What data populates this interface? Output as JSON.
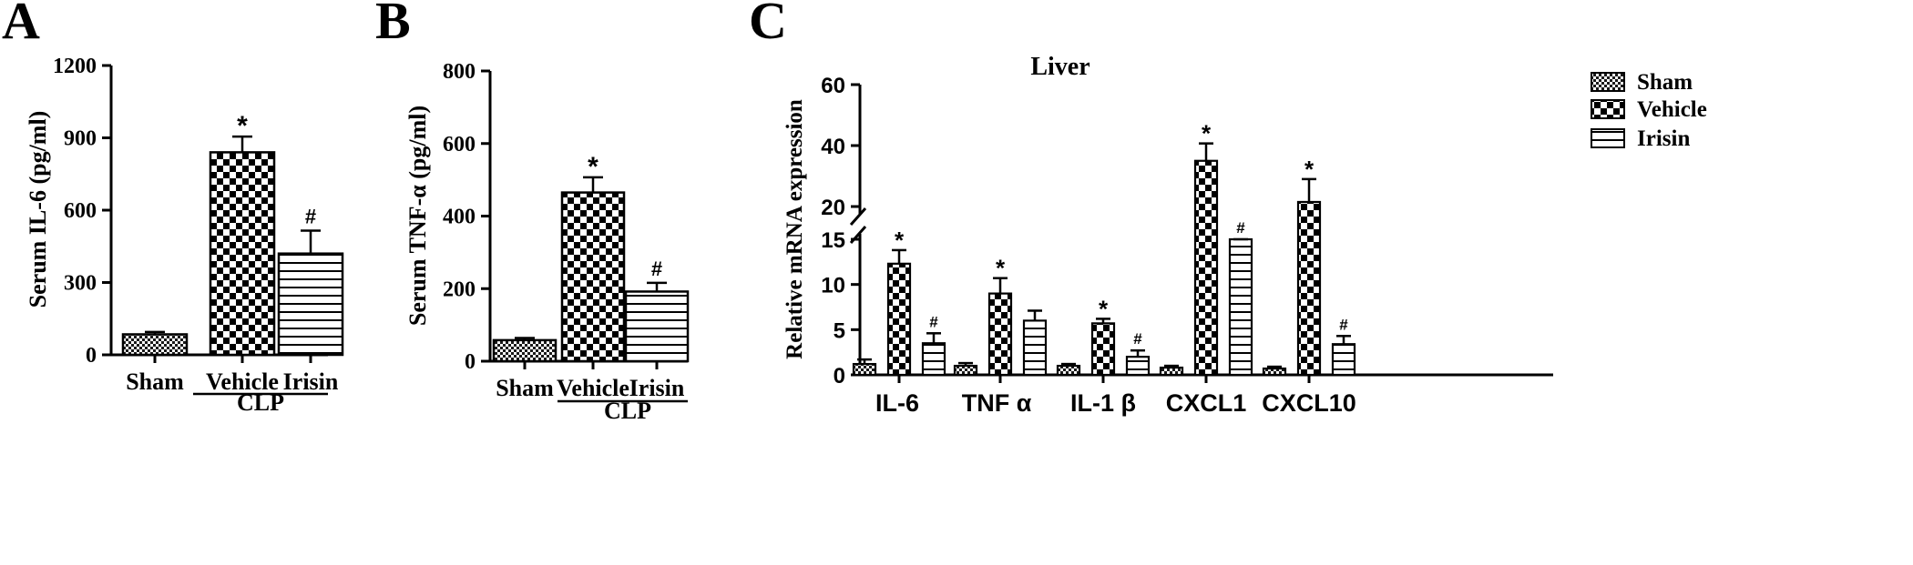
{
  "panels": {
    "a": {
      "letter": "A"
    },
    "b": {
      "letter": "B"
    },
    "c": {
      "letter": "C"
    }
  },
  "chart_data": [
    {
      "panel": "A",
      "type": "bar",
      "categories": [
        "Sham",
        "Vehicle",
        "Irisin"
      ],
      "values": [
        85,
        840,
        420
      ],
      "errors": [
        10,
        65,
        95
      ],
      "markers": [
        "",
        "*",
        "#"
      ],
      "patterns": [
        "fine",
        "checker",
        "hlines"
      ],
      "ylabel": "Serum IL-6 (pg/ml)",
      "ylim": [
        0,
        1200
      ],
      "yticks": [
        0,
        300,
        600,
        900,
        1200
      ],
      "group_label": "CLP",
      "grid": false
    },
    {
      "panel": "B",
      "type": "bar",
      "categories": [
        "Sham",
        "Vehicle",
        "Irisin"
      ],
      "values": [
        58,
        465,
        192
      ],
      "errors": [
        6,
        42,
        24
      ],
      "markers": [
        "",
        "*",
        "#"
      ],
      "patterns": [
        "fine",
        "checker",
        "hlines"
      ],
      "ylabel": "Serum TNF-α (pg/ml)",
      "ylim": [
        0,
        800
      ],
      "yticks": [
        0,
        200,
        400,
        600,
        800
      ],
      "group_label": "CLP",
      "grid": false
    },
    {
      "panel": "C",
      "type": "bar",
      "title": "Liver",
      "categories": [
        "IL-6",
        "TNF α",
        "IL-1 β",
        "CXCL1",
        "CXCL10"
      ],
      "series": [
        {
          "name": "Sham",
          "pattern": "fine",
          "values": [
            1.2,
            1.0,
            1.0,
            0.8,
            0.7
          ],
          "errors": [
            0.5,
            0.3,
            0.2,
            0.2,
            0.2
          ],
          "markers": [
            "",
            "",
            "",
            "",
            ""
          ]
        },
        {
          "name": "Vehicle",
          "pattern": "checker",
          "values": [
            12.3,
            9.0,
            5.7,
            35.0,
            21.5
          ],
          "errors": [
            1.5,
            1.7,
            0.5,
            5.7,
            7.5
          ],
          "markers": [
            "*",
            "*",
            "*",
            "*",
            "*"
          ]
        },
        {
          "name": "Irisin",
          "pattern": "hlines",
          "values": [
            3.5,
            6.0,
            2.0,
            16.0,
            3.4
          ],
          "errors": [
            1.1,
            1.1,
            0.7,
            2.8,
            0.9
          ],
          "markers": [
            "#",
            "",
            "#",
            "#",
            "#"
          ]
        }
      ],
      "ylabel": "Relative mRNA expression",
      "ylim": [
        0,
        60
      ],
      "axis_break": [
        15,
        20
      ],
      "yticks": [
        0,
        5,
        10,
        15,
        20,
        40,
        60
      ],
      "legend_position": "top-right",
      "grid": false
    }
  ]
}
